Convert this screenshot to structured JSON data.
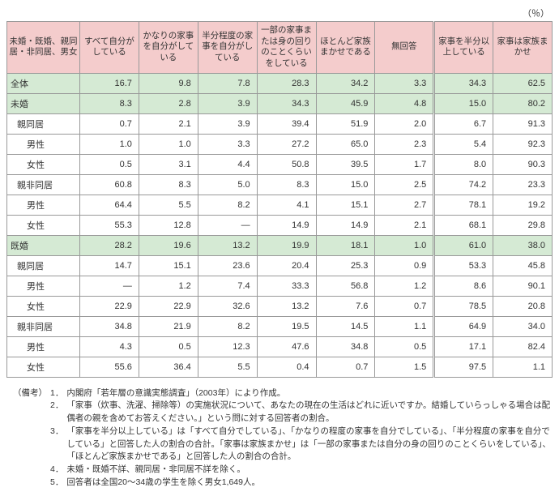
{
  "unit_label": "（％）",
  "columns": {
    "rowhead": "未婚・既婚、親同居・非同居、男女",
    "c1": "すべて自分がしている",
    "c2": "かなりの家事を自分がしている",
    "c3": "半分程度の家事を自分がしている",
    "c4": "一部の家事または身の回りのことくらいをしている",
    "c5": "ほとんど家族まかせである",
    "c6": "無回答",
    "c7": "家事を半分以上している",
    "c8": "家事は家族まかせ"
  },
  "rows": [
    {
      "k": "all",
      "cls": "sec-all",
      "label": "全体",
      "v": [
        "16.7",
        "9.8",
        "7.8",
        "28.3",
        "34.2",
        "3.3",
        "34.3",
        "62.5"
      ]
    },
    {
      "k": "unm",
      "cls": "sec-main",
      "label": "未婚",
      "v": [
        "8.3",
        "2.8",
        "3.9",
        "34.3",
        "45.9",
        "4.8",
        "15.0",
        "80.2"
      ]
    },
    {
      "k": "unm_pl",
      "cls": "sub",
      "label": "親同居",
      "v": [
        "0.7",
        "2.1",
        "3.9",
        "39.4",
        "51.9",
        "2.0",
        "6.7",
        "91.3"
      ]
    },
    {
      "k": "unm_pl_m",
      "cls": "gender",
      "label": "男性",
      "v": [
        "1.0",
        "1.0",
        "3.3",
        "27.2",
        "65.0",
        "2.3",
        "5.4",
        "92.3"
      ]
    },
    {
      "k": "unm_pl_f",
      "cls": "gender",
      "label": "女性",
      "v": [
        "0.5",
        "3.1",
        "4.4",
        "50.8",
        "39.5",
        "1.7",
        "8.0",
        "90.3"
      ]
    },
    {
      "k": "unm_pn",
      "cls": "sub",
      "label": "親非同居",
      "v": [
        "60.8",
        "8.3",
        "5.0",
        "8.3",
        "15.0",
        "2.5",
        "74.2",
        "23.3"
      ]
    },
    {
      "k": "unm_pn_m",
      "cls": "gender",
      "label": "男性",
      "v": [
        "64.4",
        "5.5",
        "8.2",
        "4.1",
        "15.1",
        "2.7",
        "78.1",
        "19.2"
      ]
    },
    {
      "k": "unm_pn_f",
      "cls": "gender",
      "label": "女性",
      "v": [
        "55.3",
        "12.8",
        "―",
        "14.9",
        "14.9",
        "2.1",
        "68.1",
        "29.8"
      ]
    },
    {
      "k": "mar",
      "cls": "sec-main",
      "label": "既婚",
      "v": [
        "28.2",
        "19.6",
        "13.2",
        "19.9",
        "18.1",
        "1.0",
        "61.0",
        "38.0"
      ]
    },
    {
      "k": "mar_pl",
      "cls": "sub",
      "label": "親同居",
      "v": [
        "14.7",
        "15.1",
        "23.6",
        "20.4",
        "25.3",
        "0.9",
        "53.3",
        "45.8"
      ]
    },
    {
      "k": "mar_pl_m",
      "cls": "gender",
      "label": "男性",
      "v": [
        "―",
        "1.2",
        "7.4",
        "33.3",
        "56.8",
        "1.2",
        "8.6",
        "90.1"
      ]
    },
    {
      "k": "mar_pl_f",
      "cls": "gender",
      "label": "女性",
      "v": [
        "22.9",
        "22.9",
        "32.6",
        "13.2",
        "7.6",
        "0.7",
        "78.5",
        "20.8"
      ]
    },
    {
      "k": "mar_pn",
      "cls": "sub",
      "label": "親非同居",
      "v": [
        "34.8",
        "21.9",
        "8.2",
        "19.5",
        "14.5",
        "1.1",
        "64.9",
        "34.0"
      ]
    },
    {
      "k": "mar_pn_m",
      "cls": "gender",
      "label": "男性",
      "v": [
        "4.3",
        "0.5",
        "12.3",
        "47.6",
        "34.8",
        "0.5",
        "17.1",
        "82.4"
      ]
    },
    {
      "k": "mar_pn_f",
      "cls": "gender",
      "label": "女性",
      "v": [
        "55.6",
        "36.4",
        "5.5",
        "0.4",
        "0.7",
        "1.5",
        "97.5",
        "1.1"
      ]
    }
  ],
  "notes": {
    "lead": "（備考）",
    "items": [
      "内閣府「若年層の意識実態調査」（2003年）により作成。",
      "「家事（炊事、洗濯、掃除等）の実施状況について、あなたの現在の生活はどれに近いですか。結婚していらっしゃる場合は配偶者の親を含めてお答えください。」という問に対する回答者の割合。",
      "「家事を半分以上している」は「すべて自分でしている」、「かなりの程度の家事を自分でしている」、「半分程度の家事を自分でしている」と回答した人の割合の合計。「家事は家族まかせ」は「一部の家事または自分の身の回りのことくらいをしている」、「ほとんど家族まかせである」と回答した人の割合の合計。",
      "未婚・既婚不詳、親同居・非同居不詳を除く。",
      "回答者は全国20～34歳の学生を除く男女1,649人。"
    ]
  }
}
